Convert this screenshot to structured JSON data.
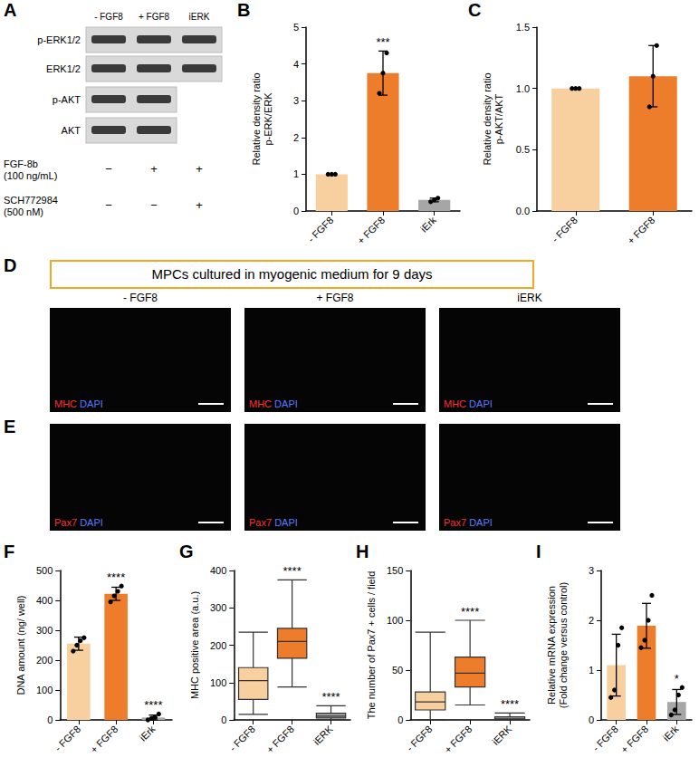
{
  "figure": {
    "letters": [
      "A",
      "B",
      "C",
      "D",
      "E",
      "F",
      "G",
      "H",
      "I"
    ],
    "A": {
      "lanes": [
        "- FGF8",
        "+ FGF8",
        "iERK"
      ],
      "rows": [
        {
          "label": "p-ERK1/2",
          "lanes": 3
        },
        {
          "label": "ERK1/2",
          "lanes": 3
        },
        {
          "label": "p-AKT",
          "lanes": 2
        },
        {
          "label": "AKT",
          "lanes": 2
        }
      ],
      "treatments": [
        {
          "label": "FGF-8b\n(100 ng/mL)",
          "marks": [
            "−",
            "+",
            "+"
          ]
        },
        {
          "label": "SCH772984\n(500 nM)",
          "marks": [
            "−",
            "−",
            "+"
          ]
        }
      ]
    },
    "D": {
      "banner": "MPCs cultured in myogenic medium for 9 days",
      "columns": [
        "- FGF8",
        "+ FGF8",
        "iERK"
      ],
      "stain": [
        "MHC",
        "DAPI"
      ]
    },
    "E": {
      "stain": [
        "Pax7",
        "DAPI"
      ]
    }
  },
  "chart_data": [
    {
      "type": "bar",
      "y_label": "Relative density ratio\np-ERK/ERK",
      "categories": [
        "- FGF8",
        "+ FGF8",
        "iErk"
      ],
      "values": [
        1.0,
        3.75,
        0.3
      ],
      "errors": [
        0,
        0.6,
        0.05
      ],
      "points": [
        [
          1,
          1,
          1
        ],
        [
          3.2,
          3.75,
          4.3
        ],
        [
          0.25,
          0.3,
          0.35
        ]
      ],
      "colors": [
        "#F8D0A0",
        "#EE7D2B",
        "#A6A6A6"
      ],
      "ylim": [
        0,
        5
      ],
      "yticks": [
        0,
        1,
        2,
        3,
        4,
        5
      ],
      "grid": false,
      "annotations": [
        {
          "category": "+ FGF8",
          "text": "***"
        }
      ]
    },
    {
      "type": "bar",
      "y_label": "Relative density ratio\np-AKT/AKT",
      "categories": [
        "- FGF8",
        "+ FGF8"
      ],
      "values": [
        1.0,
        1.1
      ],
      "errors": [
        0,
        0.25
      ],
      "points": [
        [
          1,
          1,
          1
        ],
        [
          0.85,
          1.1,
          1.35
        ]
      ],
      "colors": [
        "#F8D0A0",
        "#EE7D2B"
      ],
      "ylim": [
        0,
        1.5
      ],
      "yticks": [
        {
          "value": 0,
          "label": "0.0"
        },
        {
          "value": 0.5,
          "label": "0.5"
        },
        {
          "value": 1,
          "label": "1.0"
        },
        {
          "value": 1.5,
          "label": "1.5"
        }
      ],
      "grid": false,
      "annotations": []
    },
    {
      "type": "bar",
      "y_label": "DNA amount (ng/ well)",
      "categories": [
        "- FGF8",
        "+ FGF8",
        "iErk"
      ],
      "values": [
        255,
        422,
        8
      ],
      "errors": [
        22,
        22,
        8
      ],
      "points": [
        [
          230,
          250,
          265,
          275
        ],
        [
          395,
          415,
          430,
          448
        ],
        [
          0,
          5,
          8,
          20
        ]
      ],
      "colors": [
        "#F8D0A0",
        "#EE7D2B",
        "#A6A6A6"
      ],
      "ylim": [
        0,
        500
      ],
      "yticks": [
        0,
        100,
        200,
        300,
        400,
        500
      ],
      "grid": false,
      "annotations": [
        {
          "category": "+ FGF8",
          "text": "****"
        },
        {
          "category": "iErk",
          "text": "****"
        }
      ]
    },
    {
      "type": "boxplot",
      "y_label": "MHC positive area (a.u.)",
      "categories": [
        "- FGF8",
        "+ FGF8",
        "iERK"
      ],
      "values": [
        [
          15,
          55,
          105,
          140,
          235
        ],
        [
          88,
          165,
          210,
          245,
          375
        ],
        [
          0,
          5,
          10,
          18,
          38
        ]
      ],
      "colors": [
        "#F8D0A0",
        "#EE7D2B",
        "#A6A6A6"
      ],
      "ylim": [
        0,
        400
      ],
      "yticks": [
        0,
        100,
        200,
        300,
        400
      ],
      "grid": false,
      "annotations": [
        {
          "category": "+ FGF8",
          "text": "****"
        },
        {
          "category": "iERK",
          "text": "****"
        }
      ]
    },
    {
      "type": "boxplot",
      "y_label": "The number of Pax7 + cells / field",
      "categories": [
        "- FGF8",
        "+ FGF8",
        "iERK"
      ],
      "values": [
        [
          0,
          10,
          18,
          28,
          88
        ],
        [
          15,
          33,
          47,
          63,
          100
        ],
        [
          0,
          0,
          1,
          3,
          7
        ]
      ],
      "colors": [
        "#F8D0A0",
        "#EE7D2B",
        "#A6A6A6"
      ],
      "ylim": [
        0,
        150
      ],
      "yticks": [
        0,
        50,
        100,
        150
      ],
      "grid": false,
      "annotations": [
        {
          "category": "+ FGF8",
          "text": "****"
        },
        {
          "category": "iERK",
          "text": "****"
        }
      ]
    },
    {
      "type": "bar",
      "y_label": "Relative mRNA expression\n(Fold change versus control)",
      "categories": [
        "- FGF8",
        "+ FGF8",
        "iErk"
      ],
      "values": [
        1.1,
        1.89,
        0.36
      ],
      "errors": [
        0.62,
        0.45,
        0.25
      ],
      "points": [
        [
          0.45,
          0.6,
          1.5,
          1.85
        ],
        [
          1.45,
          1.6,
          2.0,
          2.5
        ],
        [
          0.1,
          0.2,
          0.5,
          0.65
        ]
      ],
      "colors": [
        "#F8D0A0",
        "#EE7D2B",
        "#A6A6A6"
      ],
      "ylim": [
        0,
        3
      ],
      "yticks": [
        0,
        1,
        2,
        3
      ],
      "grid": false,
      "annotations": [
        {
          "category": "iErk",
          "text": "*"
        }
      ]
    }
  ]
}
